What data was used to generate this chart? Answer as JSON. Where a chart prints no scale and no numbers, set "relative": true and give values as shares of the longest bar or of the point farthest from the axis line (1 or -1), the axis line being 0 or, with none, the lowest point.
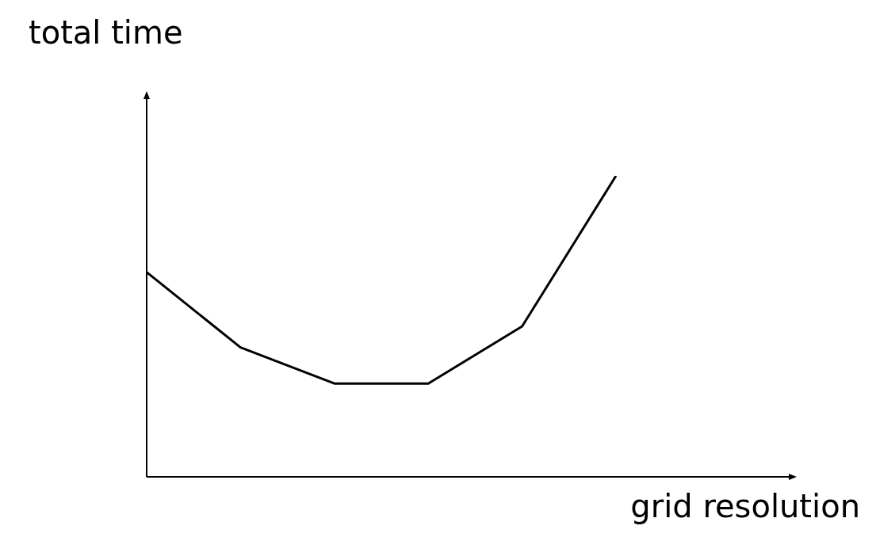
{
  "chart_data": {
    "type": "line",
    "title": "total time",
    "xlabel": "grid resolution",
    "relative": true,
    "categories": [
      null,
      null,
      null,
      null,
      null,
      null
    ],
    "legend": false,
    "marker": "none",
    "line_style": "solid",
    "series": [
      {
        "color": "#000000",
        "values": [
          0.68,
          0.43,
          0.31,
          0.31,
          0.5,
          1
        ]
      }
    ]
  }
}
